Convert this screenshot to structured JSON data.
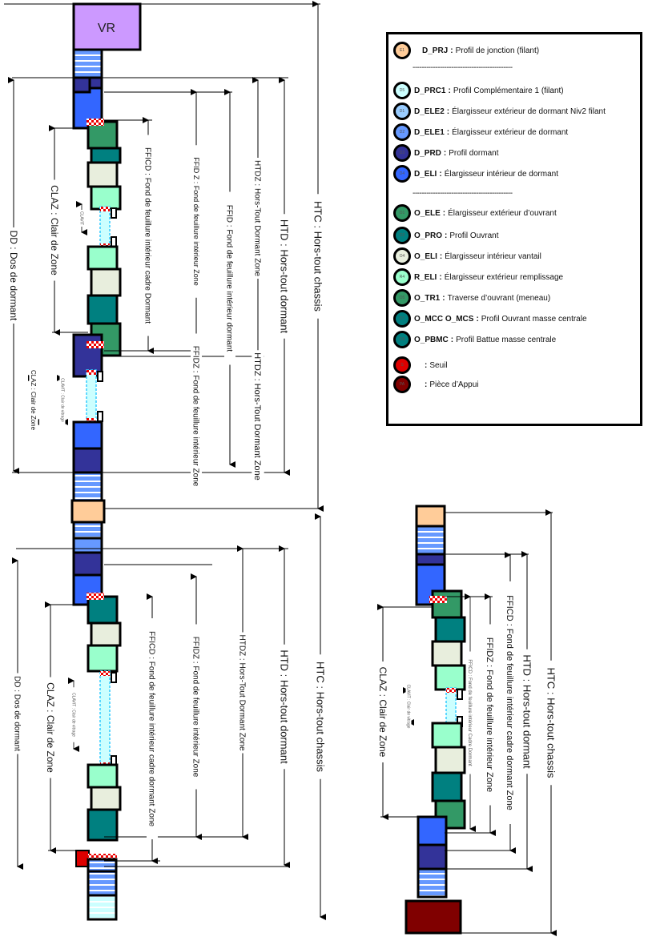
{
  "vr_label": "VR",
  "legend": {
    "separator": "--------------------------------------------",
    "items": [
      {
        "code": "D_PRJ",
        "desc": "Profil de jonction (filant)",
        "badge": "E1",
        "color": "#ffcc99"
      },
      {
        "code": "D_PRC1",
        "desc": "Profil Complémentaire 1 (filant)",
        "badge": "D5",
        "color": "#ccffff"
      },
      {
        "code": "D_ELE2",
        "desc": "Élargisseur extérieur de dormant Niv2 filant",
        "badge": "D1",
        "color": "#99ccff"
      },
      {
        "code": "D_ELE1",
        "desc": "Élargisseur extérieur de dormant",
        "badge": "D2",
        "color": "#6699ff"
      },
      {
        "code": "D_PRD",
        "desc": "Profil dormant",
        "badge": "D3",
        "color": "#333399"
      },
      {
        "code": "D_ELI",
        "desc": "Élargisseur intérieur de dormant",
        "badge": "D4",
        "color": "#3366ff"
      },
      {
        "code": "O_ELE",
        "desc": "Élargisseur extérieur d’ouvrant",
        "badge": "O1",
        "color": "#339966"
      },
      {
        "code": "O_PRO",
        "desc": "Profil Ouvrant",
        "badge": "O2",
        "color": "#008080"
      },
      {
        "code": "O_ELI",
        "desc": "Élargisseur intérieur vantail",
        "badge": "O4",
        "color": "#e8eedd"
      },
      {
        "code": "R_ELI",
        "desc": "Élargisseur extérieur remplissage",
        "badge": "R4",
        "color": "#99ffcc"
      },
      {
        "code": "O_TR1",
        "desc": "Traverse d’ouvrant (meneau)",
        "badge": "O5",
        "color": "#339966"
      },
      {
        "code": "O_MCC O_MCS",
        "desc": "Profil Ouvrant masse centrale",
        "badge": "O7",
        "color": "#008080"
      },
      {
        "code": "O_PBMC",
        "desc": "Profil Battue masse centrale",
        "badge": "O8",
        "color": "#008080"
      },
      {
        "code": "",
        "desc": "Seuil",
        "badge": "S",
        "color": "#dd0000"
      },
      {
        "code": "",
        "desc": "Pièce d’Appui",
        "badge": "PA",
        "color": "#800000"
      }
    ]
  },
  "top": {
    "htc": "HTC : Hors-tout chassis",
    "htd": "HTD : Hors-tout dormant",
    "htdz": "HTDZ : Hors-Tout Dormant Zone",
    "ffid": "FFID : Fond de feuillure intérieur dormant",
    "ffidz": "FFID Z : Fond de feuillure intérieur Zone",
    "fficd": "FFICD : Fond de feuillure intérieur cadre Dormant",
    "claz": "CLAZ : Clair de Zone",
    "clavit": "CLAVIT",
    "dd": "DD : Dos de dormant",
    "htdz2": "HTDZ : Hors-Tout Dormant Zone",
    "ffidz2": "FFIDZ : Fond de feuillure intérieur Zone",
    "claz2": "CLAZ : Clair de Zone",
    "clavit2": "CLAVIT : Clair de vitrage"
  },
  "middle": {
    "htc": "HTC : Hors-tout chassis",
    "htd": "HTD : Hors-tout dormant",
    "htdz": "HTDZ : Hors-Tout Dormant Zone",
    "ffidz": "FFIDZ : Fond de feuillure intérieur Zone",
    "fficd": "FFICD : Fond de feuillure intérieur cadre dormant Zone",
    "claz": "CLAZ : Clair de Zone",
    "clavit": "CLAVIT : Clair de vitrage",
    "dd": "DD : Dos de dormant"
  },
  "right": {
    "htc": "HTC : Hors-tout chassis",
    "htd": "HTD : Hors-tout dormant",
    "fficd": "FFICD : Fond de feuillure intérieur cadre dormant Zone",
    "ffidz": "FFIDZ : Fond de feuillure intérieur Zone",
    "fficd2": "FFICD : Fond de feuillure intérieur Cadre Dormant",
    "claz": "CLAZ : Clair de Zone",
    "clavit": "CLAVIT : Clair de vitrage"
  }
}
